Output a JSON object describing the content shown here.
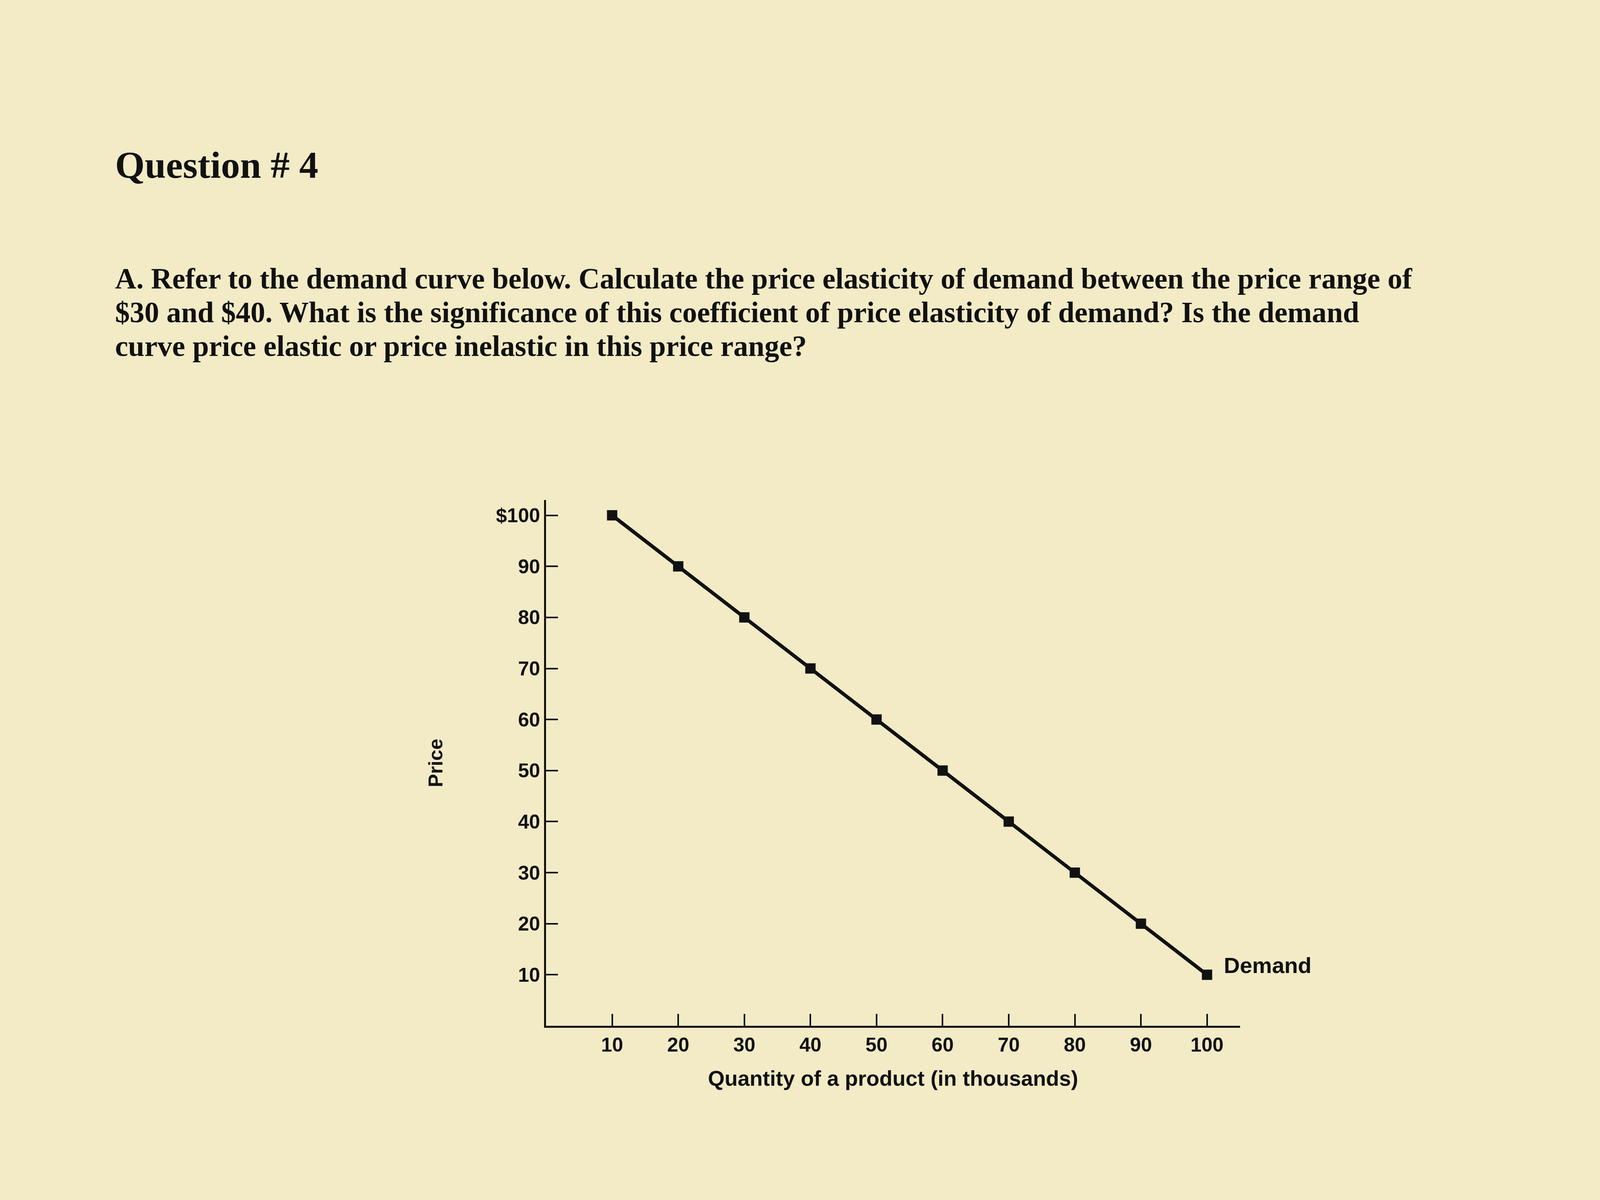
{
  "chart_data": {
    "type": "line",
    "title": "Question # 4",
    "subtitle": "A. Refer to the demand curve below. Calculate the price elasticity of demand between the price range of $30 and $40. What is the significance of this coefficient of price elasticity of demand? Is the demand curve price elastic or price inelastic in this price range?",
    "x_label": "Quantity of a product (in thousands)",
    "y_label": "Price",
    "x": [
      10,
      20,
      30,
      40,
      50,
      60,
      70,
      80,
      90,
      100
    ],
    "series": [
      {
        "name": "Demand",
        "color": "#111111",
        "marker": "square",
        "line_style": "solid",
        "values": [
          100,
          90,
          80,
          70,
          60,
          50,
          40,
          30,
          20,
          10
        ]
      }
    ],
    "xlim": [
      0,
      105
    ],
    "ylim": [
      0,
      103
    ],
    "xticks": [
      10,
      20,
      30,
      40,
      50,
      60,
      70,
      80,
      90,
      100
    ],
    "yticks": [
      10,
      20,
      30,
      40,
      50,
      60,
      70,
      80,
      90,
      {
        "value": 100,
        "label": "$100"
      }
    ],
    "grid": false
  }
}
